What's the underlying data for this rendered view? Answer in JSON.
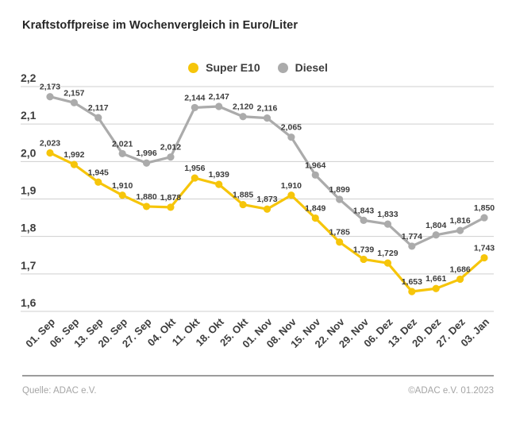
{
  "title": "Kraftstoffpreise im Wochenvergleich in Euro/Liter",
  "legend": {
    "items": [
      {
        "label": "Super E10",
        "color": "#F6C50A"
      },
      {
        "label": "Diesel",
        "color": "#ABABAB"
      }
    ]
  },
  "footer": {
    "source": "Quelle: ADAC e.V.",
    "copyright": "©ADAC e.V.  01.2023"
  },
  "colors": {
    "super_e10": "#F6C50A",
    "diesel": "#ABABAB",
    "gridline": "#cfcfcf",
    "axis_text": "#3d3d3d",
    "point_label_text": "#3c3c3c"
  },
  "chart_data": {
    "type": "line",
    "title": "Kraftstoffpreise im Wochenvergleich in Euro/Liter",
    "xlabel": "",
    "ylabel": "",
    "unit": "Euro/Liter",
    "grid": true,
    "legend_position": "top-center",
    "ylim": [
      1.6,
      2.2
    ],
    "y_ticks": [
      2.2,
      2.1,
      2.0,
      1.9,
      1.8,
      1.7,
      1.6
    ],
    "categories": [
      "01. Sep",
      "06. Sep",
      "13. Sep",
      "20. Sep",
      "27. Sep",
      "04. Okt",
      "11. Okt",
      "18. Okt",
      "25. Okt",
      "01. Nov",
      "08. Nov",
      "15. Nov",
      "22. Nov",
      "29. Nov",
      "06. Dez",
      "13. Dez",
      "20. Dez",
      "27. Dez",
      "03. Jan"
    ],
    "series": [
      {
        "name": "Super E10",
        "color": "#F6C50A",
        "values": [
          2.023,
          1.992,
          1.945,
          1.91,
          1.88,
          1.878,
          1.956,
          1.939,
          1.885,
          1.873,
          1.91,
          1.849,
          1.785,
          1.739,
          1.729,
          1.653,
          1.661,
          1.686,
          1.743
        ]
      },
      {
        "name": "Diesel",
        "color": "#ABABAB",
        "values": [
          2.173,
          2.157,
          2.117,
          2.021,
          1.996,
          2.012,
          2.144,
          2.147,
          2.12,
          2.116,
          2.065,
          1.964,
          1.899,
          1.843,
          1.833,
          1.774,
          1.804,
          1.816,
          1.85
        ]
      }
    ]
  }
}
